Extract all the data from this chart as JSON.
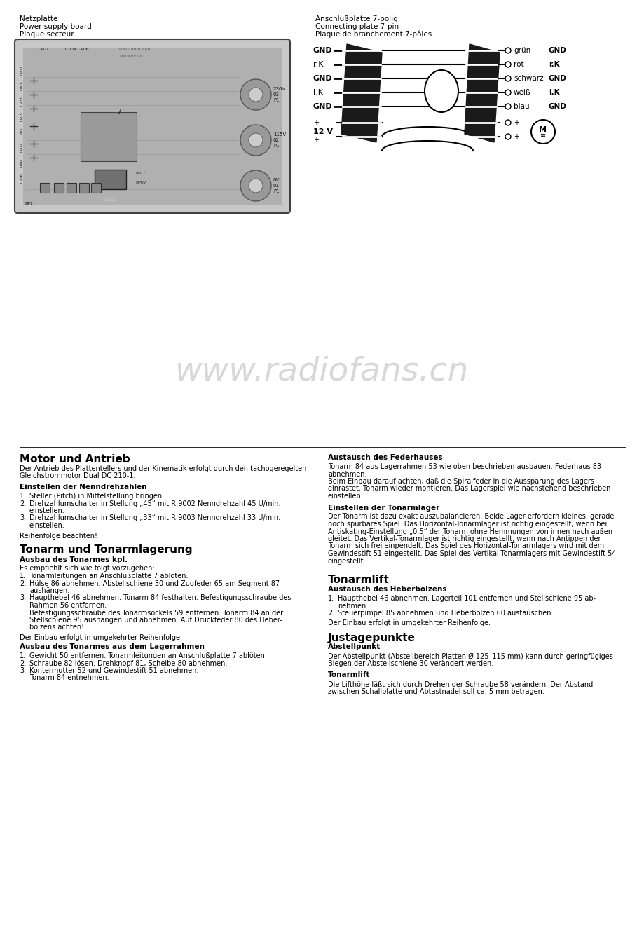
{
  "bg_color": "#ffffff",
  "watermark_text": "www.radiofans.cn",
  "watermark_color": "#d8d8d8",
  "watermark_fontsize": 34,
  "left_label1": "Netzplatte",
  "left_label2": "Power supply board",
  "left_label3": "Plaque secteur",
  "right_label1": "Anschlußplatte 7-polig",
  "right_label2": "Connecting plate 7-pin",
  "right_label3": "Plaque de branchement 7-pôles",
  "conn_left_labels": [
    "GND",
    "r.K",
    "GND",
    "l.K",
    "GND"
  ],
  "conn_right_labels": [
    "grün",
    "rot",
    "schwarz",
    "weiß",
    "blau"
  ],
  "conn_right_labels2": [
    "GND",
    "r.K",
    "GND",
    "l.K",
    "GND"
  ],
  "section1_title": "Motor und Antrieb",
  "section1_body1": "Der Antrieb des Plattentellers und der Kinematik erfolgt durch den tachogeregelten",
  "section1_body2": "Gleichstrommotor Dual DC 210-1.",
  "section1_sub1": "Einstellen der Nenndrehzahlen",
  "section1_items": [
    [
      "Steller (Pitch) in Mittelstellung bringen."
    ],
    [
      "Drehzahlumschalter in Stellung „45“ mit R 9002 Nenndrehzahl 45 U/min.",
      "einstellen."
    ],
    [
      "Drehzahlumschalter in Stellung „33“ mit R 9003 Nenndrehzahl 33 U/min.",
      "einstellen."
    ]
  ],
  "section1_note": "Reihenfolge beachten!",
  "section2_title": "Tonarm und Tonarmlagerung",
  "section2_sub1": "Ausbau des Tonarmes kpl.",
  "section2_body1": "Es empfiehlt sich wie folgt vorzugehen:",
  "section2_items1": [
    [
      "Tonarmleitungen an Anschlußplatte 7 ablöten."
    ],
    [
      "Hülse 86 abnehmen. Abstellschiene 30 und Zugfeder 65 am Segment 87",
      "aushängen."
    ],
    [
      "Haupthebel 46 abnehmen. Tonarm 84 festhalten. Befestigungsschraube des",
      "Rahmen 56 entfernen.",
      "Befestigungsschraube des Tonarmsockels 59 entfernen. Tonarm 84 an der",
      "Stellschiene 95 aushängen und abnehmen. Auf Druckfeder 80 des Heber-",
      "bolzens achten!"
    ]
  ],
  "section2_note1": "Der Einbau erfolgt in umgekehrter Reihenfolge.",
  "section2_sub2": "Ausbau des Tonarmes aus dem Lagerrahmen",
  "section2_items2": [
    [
      "Gewicht 50 entfernen. Tonarmleitungen an Anschlußplatte 7 ablöten."
    ],
    [
      "Schraube 82 lösen. Drehknopf 81, Scheibe 80 abnehmen."
    ],
    [
      "Kontermutter 52 und Gewindestift 51 abnehmen.",
      "Tonarm 84 entnehmen."
    ]
  ],
  "section3_title": "Austausch des Federhauses",
  "section3_body": [
    "Tonarm 84 aus Lagerrahmen 53 wie oben beschrieben ausbauen. Federhaus 83",
    "abnehmen.",
    "Beim Einbau darauf achten, daß die Spiralfeder in die Aussparung des Lagers",
    "einrastet. Tonarm wieder montieren. Das Lagerspiel wie nachstehend beschrieben",
    "einstellen."
  ],
  "section3_sub1": "Einstellen der Tonarmlager",
  "section3_body2": [
    "Der Tonarm ist dazu exakt auszubalancieren. Beide Lager erfordern kleines, gerade",
    "noch spürbares Spiel. Das Horizontal-Tonarmlager ist richtig eingestellt, wenn bei",
    "Antiskating-Einstellung „0,5“ der Tonarm ohne Hemmungen von innen nach außen",
    "gleitet. Das Vertikal-Tonarmlager ist richtig eingestellt, wenn nach Antippen der",
    "Tonarm sich frei einpendelt. Das Spiel des Horizontal-Tonarmlagers wird mit dem",
    "Gewindestift 51 eingestellt. Das Spiel des Vertikal-Tonarmlagers mit Gewindestift 54",
    "eingestellt."
  ],
  "section4_title": "Tonarmlift",
  "section4_sub1": "Austausch des Heberbolzens",
  "section4_items": [
    [
      "Haupthebel 46 abnehmen. Lagerteil 101 entfernen und Stellschiene 95 ab-",
      "nehmen."
    ],
    [
      "Steuerpimpel 85 abnehmen und Heberbolzen 60 austauschen."
    ]
  ],
  "section4_note": "Der Einbau erfolgt in umgekehrter Reihenfolge.",
  "section5_title": "Justagepunkte",
  "section5_sub1": "Abstellpunkt",
  "section5_body1": [
    "Der Abstellpunkt (Abstellbereich Platten Ø 125–115 mm) kann durch geringfügiges",
    "Biegen der Abstellschiene 30 verändert werden."
  ],
  "section5_sub2": "Tonarmlift",
  "section5_body2": [
    "Die Lifthöhe läßt sich durch Drehen der Schraube 58 verändern. Der Abstand",
    "zwischen Schallplatte und Abtastnadel soll ca. 5 mm betragen."
  ]
}
